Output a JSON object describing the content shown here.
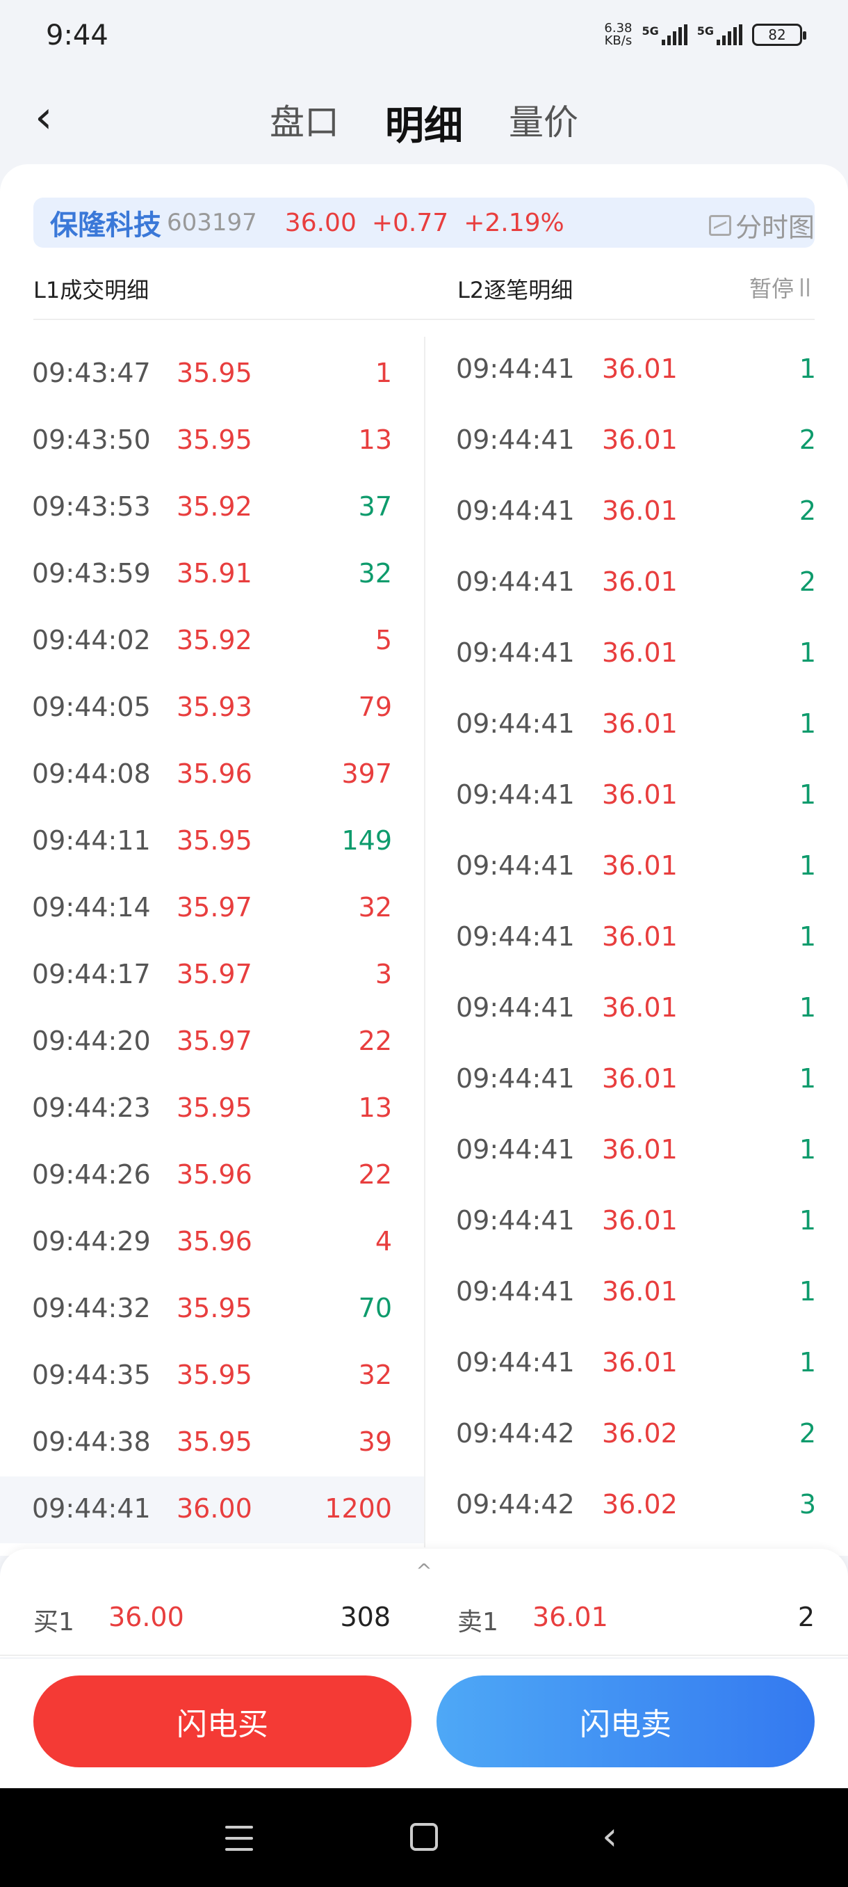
{
  "status_bar": {
    "time": "9:44",
    "net_speed_value": "6.38",
    "net_speed_unit": "KB/s",
    "signal1_label": "5G",
    "signal2_label": "5G",
    "battery": "82"
  },
  "header": {
    "back_icon": "chevron-left-icon",
    "tabs": [
      {
        "label": "盘口",
        "active": false
      },
      {
        "label": "明细",
        "active": true
      },
      {
        "label": "量价",
        "active": false
      }
    ]
  },
  "quote": {
    "name": "保隆科技",
    "code": "603197",
    "price": "36.00",
    "change": "+0.77",
    "percent": "+2.19%",
    "fenshi_label": "分时图"
  },
  "sections": {
    "l1_title": "L1成交明细",
    "l2_title": "L2逐笔明细",
    "pause_label": "暂停"
  },
  "l1_rows": [
    {
      "time": "09:43:47",
      "price": "35.95",
      "vol": "1",
      "dir": "red"
    },
    {
      "time": "09:43:50",
      "price": "35.95",
      "vol": "13",
      "dir": "red"
    },
    {
      "time": "09:43:53",
      "price": "35.92",
      "vol": "37",
      "dir": "green"
    },
    {
      "time": "09:43:59",
      "price": "35.91",
      "vol": "32",
      "dir": "green"
    },
    {
      "time": "09:44:02",
      "price": "35.92",
      "vol": "5",
      "dir": "red"
    },
    {
      "time": "09:44:05",
      "price": "35.93",
      "vol": "79",
      "dir": "red"
    },
    {
      "time": "09:44:08",
      "price": "35.96",
      "vol": "397",
      "dir": "red"
    },
    {
      "time": "09:44:11",
      "price": "35.95",
      "vol": "149",
      "dir": "green"
    },
    {
      "time": "09:44:14",
      "price": "35.97",
      "vol": "32",
      "dir": "red"
    },
    {
      "time": "09:44:17",
      "price": "35.97",
      "vol": "3",
      "dir": "red"
    },
    {
      "time": "09:44:20",
      "price": "35.97",
      "vol": "22",
      "dir": "red"
    },
    {
      "time": "09:44:23",
      "price": "35.95",
      "vol": "13",
      "dir": "red"
    },
    {
      "time": "09:44:26",
      "price": "35.96",
      "vol": "22",
      "dir": "red"
    },
    {
      "time": "09:44:29",
      "price": "35.96",
      "vol": "4",
      "dir": "red"
    },
    {
      "time": "09:44:32",
      "price": "35.95",
      "vol": "70",
      "dir": "green"
    },
    {
      "time": "09:44:35",
      "price": "35.95",
      "vol": "32",
      "dir": "red"
    },
    {
      "time": "09:44:38",
      "price": "35.95",
      "vol": "39",
      "dir": "red"
    },
    {
      "time": "09:44:41",
      "price": "36.00",
      "vol": "1200",
      "dir": "red"
    }
  ],
  "l2_rows": [
    {
      "time": "09:44:41",
      "price": "36.01",
      "vol": "1",
      "dir": "green"
    },
    {
      "time": "09:44:41",
      "price": "36.01",
      "vol": "2",
      "dir": "green"
    },
    {
      "time": "09:44:41",
      "price": "36.01",
      "vol": "2",
      "dir": "green"
    },
    {
      "time": "09:44:41",
      "price": "36.01",
      "vol": "2",
      "dir": "green"
    },
    {
      "time": "09:44:41",
      "price": "36.01",
      "vol": "1",
      "dir": "green"
    },
    {
      "time": "09:44:41",
      "price": "36.01",
      "vol": "1",
      "dir": "green"
    },
    {
      "time": "09:44:41",
      "price": "36.01",
      "vol": "1",
      "dir": "green"
    },
    {
      "time": "09:44:41",
      "price": "36.01",
      "vol": "1",
      "dir": "green"
    },
    {
      "time": "09:44:41",
      "price": "36.01",
      "vol": "1",
      "dir": "green"
    },
    {
      "time": "09:44:41",
      "price": "36.01",
      "vol": "1",
      "dir": "green"
    },
    {
      "time": "09:44:41",
      "price": "36.01",
      "vol": "1",
      "dir": "green"
    },
    {
      "time": "09:44:41",
      "price": "36.01",
      "vol": "1",
      "dir": "green"
    },
    {
      "time": "09:44:41",
      "price": "36.01",
      "vol": "1",
      "dir": "green"
    },
    {
      "time": "09:44:41",
      "price": "36.01",
      "vol": "1",
      "dir": "green"
    },
    {
      "time": "09:44:41",
      "price": "36.01",
      "vol": "1",
      "dir": "green"
    },
    {
      "time": "09:44:42",
      "price": "36.02",
      "vol": "2",
      "dir": "green"
    },
    {
      "time": "09:44:42",
      "price": "36.02",
      "vol": "3",
      "dir": "green"
    }
  ],
  "bid_ask": {
    "bid_label": "买1",
    "bid_price": "36.00",
    "bid_vol": "308",
    "ask_label": "卖1",
    "ask_price": "36.01",
    "ask_vol": "2"
  },
  "actions": {
    "buy_label": "闪电买",
    "sell_label": "闪电卖"
  },
  "colors": {
    "up_red": "#e83e3e",
    "down_green": "#0e9b6c",
    "buy_button": "#f43a35",
    "sell_button": "#3479f0",
    "stock_name_blue": "#3a78d8"
  }
}
